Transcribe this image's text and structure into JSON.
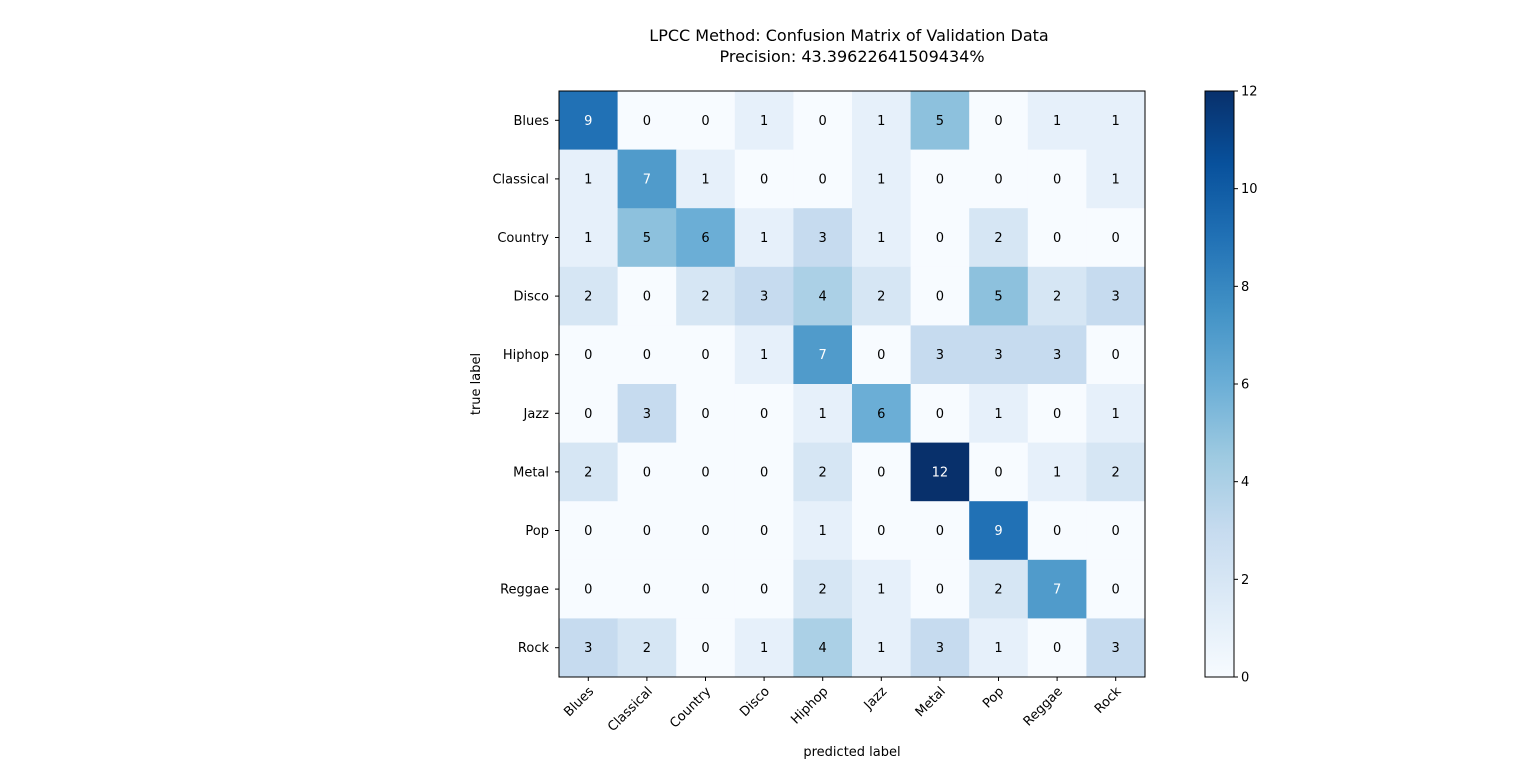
{
  "chart_data": {
    "type": "heatmap",
    "title": "LPCC Method: Confusion Matrix of Validation Data",
    "subtitle": "Precision: 43.39622641509434%",
    "xlabel": "predicted label",
    "ylabel": "true label",
    "x_categories": [
      "Blues",
      "Classical",
      "Country",
      "Disco",
      "Hiphop",
      "Jazz",
      "Metal",
      "Pop",
      "Reggae",
      "Rock"
    ],
    "y_categories": [
      "Blues",
      "Classical",
      "Country",
      "Disco",
      "Hiphop",
      "Jazz",
      "Metal",
      "Pop",
      "Reggae",
      "Rock"
    ],
    "values": [
      [
        9,
        0,
        0,
        1,
        0,
        1,
        5,
        0,
        1,
        1
      ],
      [
        1,
        7,
        1,
        0,
        0,
        1,
        0,
        0,
        0,
        1
      ],
      [
        1,
        5,
        6,
        1,
        3,
        1,
        0,
        2,
        0,
        0
      ],
      [
        2,
        0,
        2,
        3,
        4,
        2,
        0,
        5,
        2,
        3
      ],
      [
        0,
        0,
        0,
        1,
        7,
        0,
        3,
        3,
        3,
        0
      ],
      [
        0,
        3,
        0,
        0,
        1,
        6,
        0,
        1,
        0,
        1
      ],
      [
        2,
        0,
        0,
        0,
        2,
        0,
        12,
        0,
        1,
        2
      ],
      [
        0,
        0,
        0,
        0,
        1,
        0,
        0,
        9,
        0,
        0
      ],
      [
        0,
        0,
        0,
        0,
        2,
        1,
        0,
        2,
        7,
        0
      ],
      [
        3,
        2,
        0,
        1,
        4,
        1,
        3,
        1,
        0,
        3
      ]
    ],
    "colormap": "Blues",
    "vmin": 0,
    "vmax": 12,
    "colorbar_ticks": [
      0,
      2,
      4,
      6,
      8,
      10,
      12
    ],
    "grid": false
  }
}
